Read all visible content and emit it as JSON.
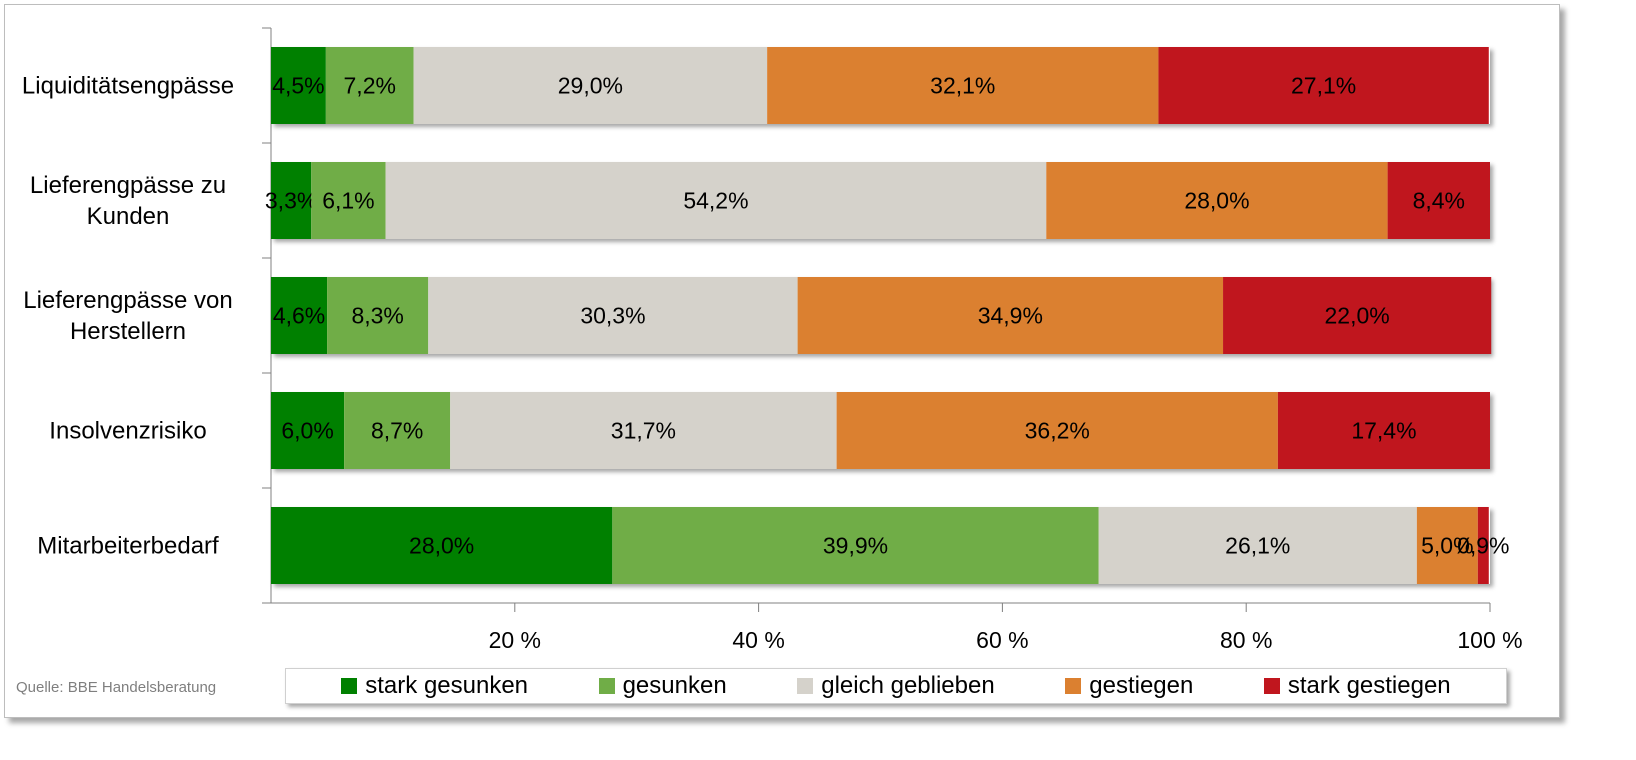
{
  "source_text": "Quelle:  BBE Handelsberatung",
  "chart_data": {
    "type": "bar",
    "orientation": "horizontal",
    "stacked": true,
    "categories": [
      "Liquiditätsengpässe",
      "Lieferengpässe zu Kunden",
      "Lieferengpässe von Herstellern",
      "Insolvenzrisiko",
      "Mitarbeiterbedarf"
    ],
    "category_label_lines": [
      [
        "Liquiditätsengpässe"
      ],
      [
        "Lieferengpässe zu",
        "Kunden"
      ],
      [
        "Lieferengpässe von",
        "Herstellern"
      ],
      [
        "Insolvenzrisiko"
      ],
      [
        "Mitarbeiterbedarf"
      ]
    ],
    "series": [
      {
        "name": "stark gesunken",
        "color": "#008000",
        "values": [
          4.5,
          3.3,
          4.6,
          6.0,
          28.0
        ],
        "labels": [
          "4,5%",
          "3,3%",
          "4,6%",
          "6,0%",
          "28,0%"
        ]
      },
      {
        "name": "gesunken",
        "color": "#70ad47",
        "values": [
          7.2,
          6.1,
          8.3,
          8.7,
          39.9
        ],
        "labels": [
          "7,2%",
          "6,1%",
          "8,3%",
          "8,7%",
          "39,9%"
        ]
      },
      {
        "name": "gleich geblieben",
        "color": "#d5d2cb",
        "values": [
          29.0,
          54.2,
          30.3,
          31.7,
          26.1
        ],
        "labels": [
          "29,0%",
          "54,2%",
          "30,3%",
          "31,7%",
          "26,1%"
        ]
      },
      {
        "name": "gestiegen",
        "color": "#db8030",
        "values": [
          32.1,
          28.0,
          34.9,
          36.2,
          5.0
        ],
        "labels": [
          "32,1%",
          "28,0%",
          "34,9%",
          "36,2%",
          "5,0%"
        ]
      },
      {
        "name": "stark gestiegen",
        "color": "#c0161e",
        "values": [
          27.1,
          8.4,
          22.0,
          17.4,
          0.9
        ],
        "labels": [
          "27,1%",
          "8,4%",
          "22,0%",
          "17,4%",
          "0,9%"
        ]
      }
    ],
    "xlim": [
      0,
      100
    ],
    "xticks": [
      20,
      40,
      60,
      80,
      100
    ],
    "xtick_labels": [
      "20 %",
      "40 %",
      "60 %",
      "80 %",
      "100 %"
    ],
    "grid": false,
    "legend_position": "bottom"
  }
}
